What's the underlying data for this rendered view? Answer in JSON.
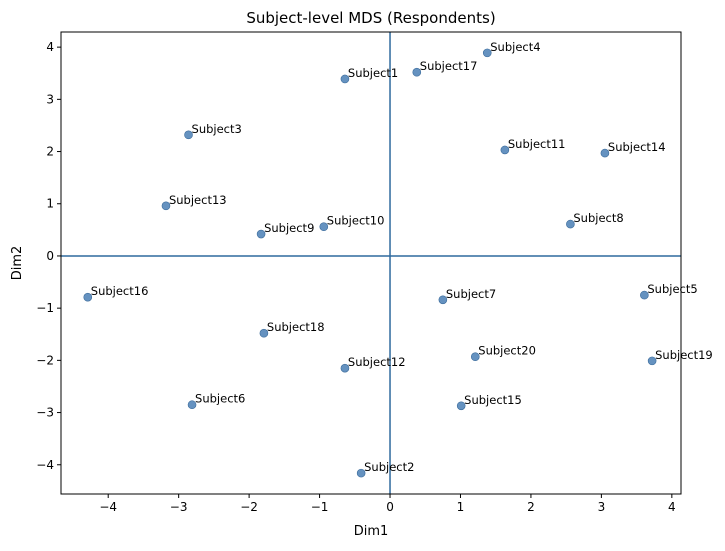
{
  "chart_data": {
    "type": "scatter",
    "title": "Subject-level MDS (Respondents)",
    "xlabel": "Dim1",
    "ylabel": "Dim2",
    "xlim": [
      -4.67,
      4.13
    ],
    "ylim": [
      -4.56,
      4.29
    ],
    "xticks": [
      -4,
      -3,
      -2,
      -1,
      0,
      1,
      2,
      3,
      4
    ],
    "yticks": [
      -4,
      -3,
      -2,
      -1,
      0,
      1,
      2,
      3,
      4
    ],
    "xtick_labels": [
      "−4",
      "−3",
      "−2",
      "−1",
      "0",
      "1",
      "2",
      "3",
      "4"
    ],
    "ytick_labels": [
      "−4",
      "−3",
      "−2",
      "−1",
      "0",
      "1",
      "2",
      "3",
      "4"
    ],
    "grid": false,
    "reference_lines": {
      "x": 0,
      "y": 0
    },
    "point_color": "#4a7fb5",
    "line_color": "#2f6a9e",
    "points": [
      {
        "label": "Subject1",
        "x": -0.64,
        "y": 3.39
      },
      {
        "label": "Subject2",
        "x": -0.41,
        "y": -4.16
      },
      {
        "label": "Subject3",
        "x": -2.86,
        "y": 2.32
      },
      {
        "label": "Subject4",
        "x": 1.38,
        "y": 3.89
      },
      {
        "label": "Subject5",
        "x": 3.61,
        "y": -0.75
      },
      {
        "label": "Subject6",
        "x": -2.81,
        "y": -2.85
      },
      {
        "label": "Subject7",
        "x": 0.75,
        "y": -0.84
      },
      {
        "label": "Subject8",
        "x": 2.56,
        "y": 0.61
      },
      {
        "label": "Subject9",
        "x": -1.83,
        "y": 0.42
      },
      {
        "label": "Subject10",
        "x": -0.94,
        "y": 0.56
      },
      {
        "label": "Subject11",
        "x": 1.63,
        "y": 2.03
      },
      {
        "label": "Subject12",
        "x": -0.64,
        "y": -2.15
      },
      {
        "label": "Subject13",
        "x": -3.18,
        "y": 0.96
      },
      {
        "label": "Subject14",
        "x": 3.05,
        "y": 1.97
      },
      {
        "label": "Subject15",
        "x": 1.01,
        "y": -2.87
      },
      {
        "label": "Subject16",
        "x": -4.29,
        "y": -0.79
      },
      {
        "label": "Subject17",
        "x": 0.38,
        "y": 3.52
      },
      {
        "label": "Subject18",
        "x": -1.79,
        "y": -1.48
      },
      {
        "label": "Subject19",
        "x": 3.72,
        "y": -2.01
      },
      {
        "label": "Subject20",
        "x": 1.21,
        "y": -1.93
      }
    ]
  }
}
